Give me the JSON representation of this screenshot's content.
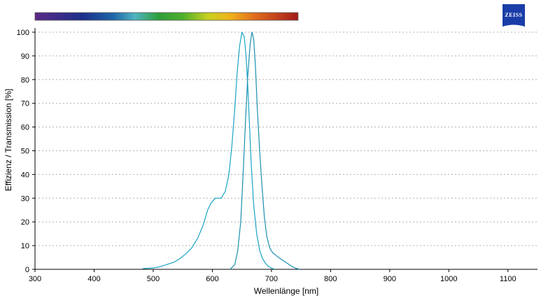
{
  "brand": {
    "logo_text": "ZEISS",
    "logo_color": "#1a3da8"
  },
  "chart_data": {
    "type": "line",
    "title": "",
    "xlabel": "Wellenlänge [nm]",
    "ylabel": "Effizienz / Transmission [%]",
    "xlim": [
      300,
      1150
    ],
    "ylim": [
      0,
      100
    ],
    "xticks": [
      300,
      400,
      500,
      600,
      700,
      800,
      900,
      1000,
      1100
    ],
    "yticks": [
      0,
      10,
      20,
      30,
      40,
      50,
      60,
      70,
      80,
      90,
      100
    ],
    "grid": {
      "horizontal": true,
      "style": "dotted"
    },
    "legend": "none",
    "spectrum_bar": {
      "range_nm": [
        300,
        745
      ]
    },
    "series": [
      {
        "color": "#1aa3c4",
        "x": [
          482,
          500,
          510,
          520,
          535,
          545,
          555,
          565,
          575,
          585,
          592,
          598,
          605,
          615,
          622,
          628,
          633,
          638,
          642,
          646,
          650,
          654,
          657,
          660,
          663,
          666,
          670,
          675,
          680,
          685,
          690,
          695,
          700,
          705
        ],
        "y": [
          0.3,
          0.6,
          1.0,
          1.8,
          3.0,
          4.5,
          6.5,
          9.0,
          13.0,
          19.0,
          25.0,
          28.0,
          30.0,
          30.0,
          33.0,
          40.0,
          52.0,
          68.0,
          83.0,
          94.0,
          100.0,
          98.0,
          90.0,
          77.0,
          60.0,
          43.0,
          27.0,
          15.0,
          8.0,
          4.5,
          2.5,
          1.2,
          0.5,
          0.1
        ]
      },
      {
        "color": "#1a8fb0",
        "x": [
          630,
          638,
          643,
          648,
          652,
          656,
          660,
          664,
          667,
          670,
          673,
          676,
          680,
          684,
          688,
          692,
          697,
          702,
          707,
          712,
          718,
          724,
          730,
          736,
          742,
          748
        ],
        "y": [
          0.0,
          2.0,
          8.0,
          20.0,
          40.0,
          62.0,
          82.0,
          95.0,
          100.0,
          97.0,
          85.0,
          68.0,
          50.0,
          35.0,
          22.0,
          14.0,
          9.0,
          7.0,
          6.0,
          5.0,
          4.0,
          3.0,
          2.0,
          1.0,
          0.4,
          0.0
        ]
      }
    ]
  }
}
